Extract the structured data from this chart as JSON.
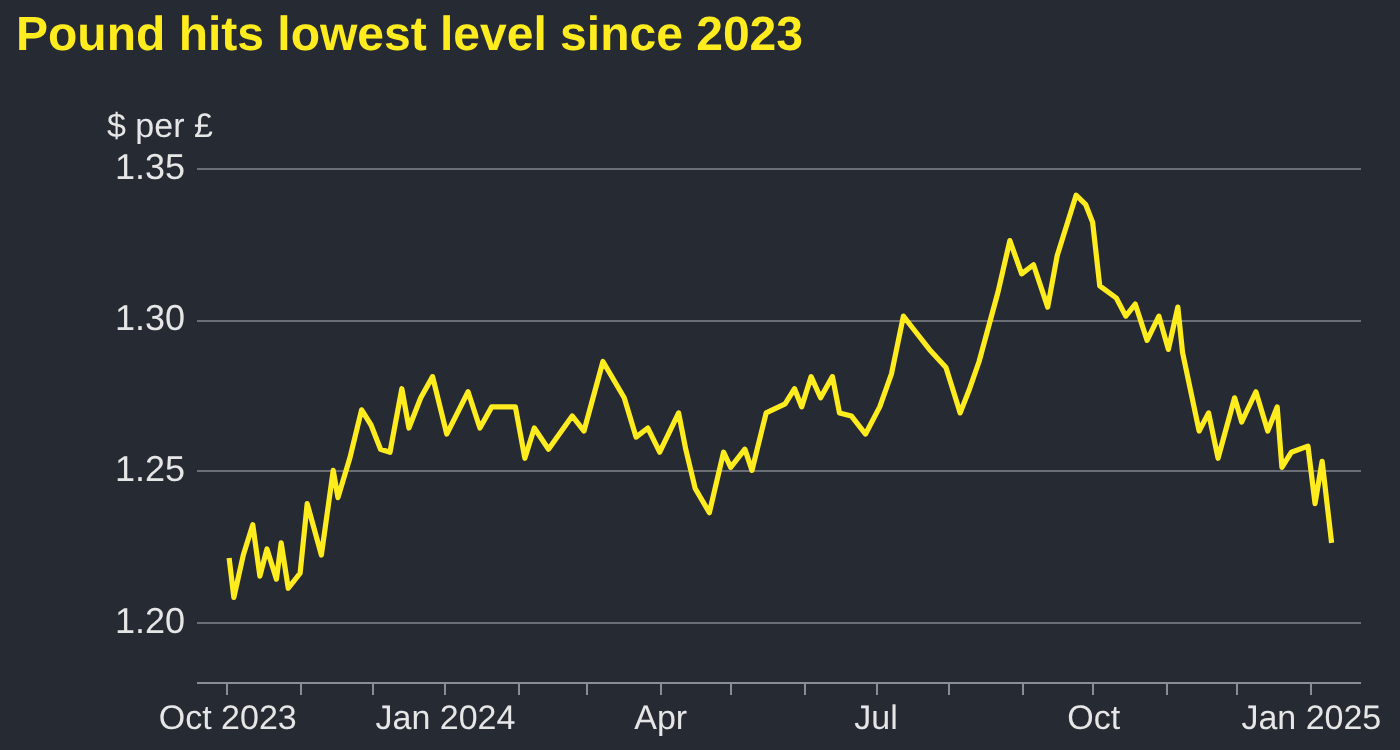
{
  "chart_data": {
    "type": "line",
    "title": "Pound hits lowest level since 2023",
    "ylabel": "$ per £",
    "x": [
      "2023-10-02",
      "2023-10-04",
      "2023-10-08",
      "2023-10-12",
      "2023-10-15",
      "2023-10-18",
      "2023-10-22",
      "2023-10-24",
      "2023-10-27",
      "2023-11-01",
      "2023-11-04",
      "2023-11-10",
      "2023-11-15",
      "2023-11-17",
      "2023-11-22",
      "2023-11-27",
      "2023-12-01",
      "2023-12-05",
      "2023-12-09",
      "2023-12-14",
      "2023-12-17",
      "2023-12-22",
      "2023-12-27",
      "2024-01-02",
      "2024-01-11",
      "2024-01-16",
      "2024-01-21",
      "2024-01-31",
      "2024-02-04",
      "2024-02-08",
      "2024-02-14",
      "2024-02-24",
      "2024-02-29",
      "2024-03-08",
      "2024-03-17",
      "2024-03-22",
      "2024-03-27",
      "2024-04-01",
      "2024-04-09",
      "2024-04-12",
      "2024-04-16",
      "2024-04-22",
      "2024-04-28",
      "2024-05-01",
      "2024-05-07",
      "2024-05-10",
      "2024-05-16",
      "2024-05-24",
      "2024-05-28",
      "2024-05-31",
      "2024-06-04",
      "2024-06-08",
      "2024-06-13",
      "2024-06-16",
      "2024-06-21",
      "2024-06-27",
      "2024-07-03",
      "2024-07-08",
      "2024-07-13",
      "2024-07-17",
      "2024-07-24",
      "2024-07-31",
      "2024-08-04",
      "2024-08-06",
      "2024-08-10",
      "2024-08-14",
      "2024-08-22",
      "2024-08-27",
      "2024-09-01",
      "2024-09-06",
      "2024-09-12",
      "2024-09-16",
      "2024-09-24",
      "2024-09-28",
      "2024-10-01",
      "2024-10-04",
      "2024-10-11",
      "2024-10-15",
      "2024-10-19",
      "2024-10-24",
      "2024-10-29",
      "2024-11-02",
      "2024-11-06",
      "2024-11-08",
      "2024-11-15",
      "2024-11-19",
      "2024-11-23",
      "2024-11-30",
      "2024-12-03",
      "2024-12-09",
      "2024-12-14",
      "2024-12-18",
      "2024-12-20",
      "2024-12-24",
      "2024-12-31",
      "2025-01-03",
      "2025-01-06",
      "2025-01-10"
    ],
    "series": [
      {
        "color": "#ffec1f",
        "values": [
          1.221,
          1.208,
          1.222,
          1.232,
          1.215,
          1.224,
          1.214,
          1.226,
          1.211,
          1.216,
          1.239,
          1.222,
          1.25,
          1.241,
          1.254,
          1.27,
          1.265,
          1.257,
          1.256,
          1.277,
          1.264,
          1.274,
          1.281,
          1.262,
          1.276,
          1.264,
          1.271,
          1.271,
          1.254,
          1.264,
          1.257,
          1.268,
          1.263,
          1.286,
          1.274,
          1.261,
          1.264,
          1.256,
          1.269,
          1.257,
          1.244,
          1.236,
          1.256,
          1.251,
          1.257,
          1.25,
          1.269,
          1.272,
          1.277,
          1.271,
          1.281,
          1.274,
          1.281,
          1.269,
          1.268,
          1.262,
          1.271,
          1.282,
          1.301,
          1.297,
          1.29,
          1.284,
          1.274,
          1.269,
          1.277,
          1.286,
          1.309,
          1.326,
          1.315,
          1.318,
          1.304,
          1.321,
          1.341,
          1.338,
          1.332,
          1.311,
          1.307,
          1.301,
          1.305,
          1.293,
          1.301,
          1.29,
          1.304,
          1.289,
          1.263,
          1.269,
          1.254,
          1.274,
          1.266,
          1.276,
          1.263,
          1.271,
          1.251,
          1.256,
          1.258,
          1.239,
          1.253,
          1.226
        ]
      }
    ],
    "xlim": [
      "2023-09-18",
      "2025-01-22"
    ],
    "xticks": [
      {
        "value": "2023-10-01",
        "label": "Oct 2023"
      },
      {
        "value": "2023-11-01",
        "label": null
      },
      {
        "value": "2023-12-01",
        "label": null
      },
      {
        "value": "2024-01-01",
        "label": "Jan 2024"
      },
      {
        "value": "2024-02-01",
        "label": null
      },
      {
        "value": "2024-03-01",
        "label": null
      },
      {
        "value": "2024-04-01",
        "label": "Apr"
      },
      {
        "value": "2024-05-01",
        "label": null
      },
      {
        "value": "2024-06-01",
        "label": null
      },
      {
        "value": "2024-07-01",
        "label": "Jul"
      },
      {
        "value": "2024-08-01",
        "label": null
      },
      {
        "value": "2024-09-01",
        "label": null
      },
      {
        "value": "2024-10-01",
        "label": "Oct"
      },
      {
        "value": "2024-11-01",
        "label": null
      },
      {
        "value": "2024-12-01",
        "label": null
      },
      {
        "value": "2025-01-01",
        "label": "Jan 2025"
      }
    ],
    "ylim": [
      1.18,
      1.35
    ],
    "yticks": [
      {
        "value": 1.2,
        "label": "1.20"
      },
      1.25,
      {
        "value": 1.3,
        "label": "1.30"
      },
      1.35
    ],
    "grid": "y",
    "line_style": "solid",
    "marker": "none"
  }
}
